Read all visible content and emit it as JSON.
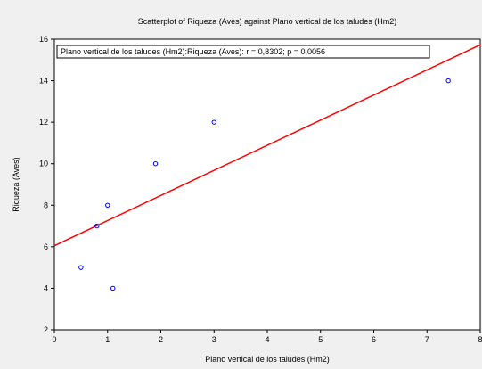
{
  "chart_data": {
    "type": "scatter",
    "title": "Scatterplot of Riqueza (Aves) against Plano vertical de los taludes (Hm2)",
    "xlabel": "Plano vertical de los taludes (Hm2)",
    "ylabel": "Riqueza (Aves)",
    "xlim": [
      0,
      8
    ],
    "ylim": [
      2,
      16
    ],
    "xticks": [
      0,
      1,
      2,
      3,
      4,
      5,
      6,
      7,
      8
    ],
    "yticks": [
      2,
      4,
      6,
      8,
      10,
      12,
      14,
      16
    ],
    "grid": false,
    "annotation": "Plano vertical de los taludes (Hm2):Riqueza (Aves):   r = 0,8302; p = 0,0056",
    "points": [
      {
        "x": 0.5,
        "y": 5
      },
      {
        "x": 0.8,
        "y": 7
      },
      {
        "x": 1.0,
        "y": 8
      },
      {
        "x": 1.1,
        "y": 4
      },
      {
        "x": 1.9,
        "y": 10
      },
      {
        "x": 3.0,
        "y": 12
      },
      {
        "x": 7.4,
        "y": 14
      }
    ],
    "fit_line": {
      "intercept": 6.05,
      "slope": 1.21
    },
    "colors": {
      "points": "#0000ff",
      "fit_line": "#ff0000",
      "plot_background": "#ffffff",
      "figure_background": "#f0f0f0"
    }
  }
}
